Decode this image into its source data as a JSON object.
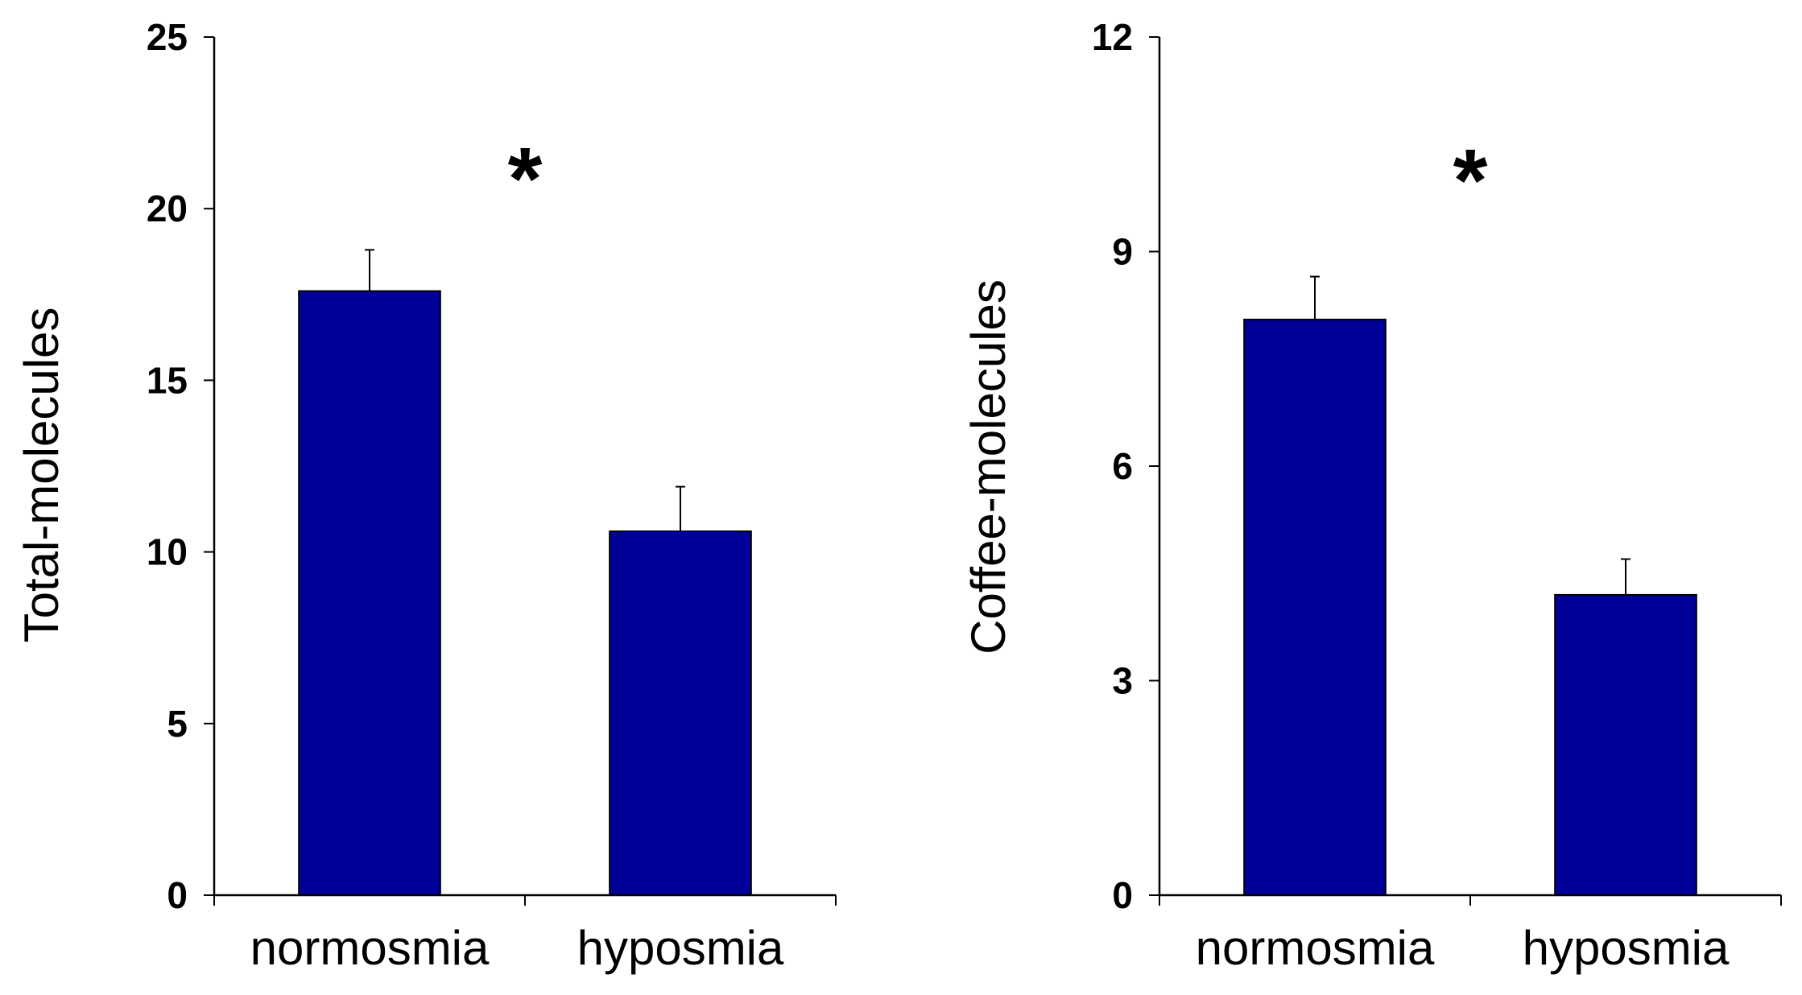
{
  "chart_data": [
    {
      "type": "bar",
      "categories": [
        "normosmia",
        "hyposmia"
      ],
      "values": [
        17.6,
        10.6
      ],
      "error_bars": [
        1.2,
        1.3
      ],
      "ylabel": "Total-molecules",
      "xlabel": "",
      "ylim": [
        0,
        25
      ],
      "yticks": [
        0,
        5,
        10,
        15,
        20,
        25
      ],
      "ytick_labels": [
        "0",
        "5",
        "10",
        "15",
        "20",
        "25"
      ],
      "significance_mark": "*",
      "bar_color": "#000099",
      "grid": false
    },
    {
      "type": "bar",
      "categories": [
        "normosmia",
        "hyposmia"
      ],
      "values": [
        8.05,
        4.2
      ],
      "error_bars": [
        0.6,
        0.5
      ],
      "ylabel": "Coffee-molecules",
      "xlabel": "",
      "ylim": [
        0,
        12
      ],
      "yticks": [
        0,
        3,
        6,
        9,
        12
      ],
      "ytick_labels": [
        "0",
        "3",
        "6",
        "9",
        "12"
      ],
      "significance_mark": "*",
      "bar_color": "#000099",
      "grid": false
    }
  ]
}
